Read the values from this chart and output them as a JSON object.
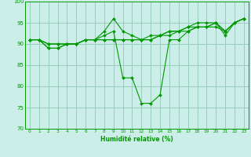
{
  "title": "",
  "xlabel": "Humidité relative (%)",
  "ylabel": "",
  "xlim": [
    -0.5,
    23.5
  ],
  "ylim": [
    70,
    100
  ],
  "yticks": [
    70,
    75,
    80,
    85,
    90,
    95,
    100
  ],
  "xticks": [
    0,
    1,
    2,
    3,
    4,
    5,
    6,
    7,
    8,
    9,
    10,
    11,
    12,
    13,
    14,
    15,
    16,
    17,
    18,
    19,
    20,
    21,
    22,
    23
  ],
  "bg_color": "#cceee8",
  "grid_color": "#99ccbb",
  "line_color": "#009900",
  "series": [
    [
      91,
      91,
      89,
      89,
      90,
      90,
      91,
      91,
      92,
      93,
      82,
      82,
      76,
      76,
      78,
      91,
      91,
      93,
      94,
      94,
      95,
      92,
      95,
      96
    ],
    [
      91,
      91,
      89,
      89,
      90,
      90,
      91,
      91,
      93,
      96,
      93,
      92,
      91,
      91,
      92,
      93,
      93,
      94,
      95,
      95,
      95,
      93,
      95,
      96
    ],
    [
      91,
      91,
      90,
      90,
      90,
      90,
      91,
      91,
      91,
      91,
      91,
      91,
      91,
      91,
      92,
      92,
      93,
      93,
      94,
      94,
      94,
      93,
      95,
      96
    ],
    [
      91,
      91,
      90,
      90,
      90,
      90,
      91,
      91,
      91,
      91,
      91,
      91,
      91,
      92,
      92,
      93,
      93,
      94,
      94,
      94,
      95,
      93,
      95,
      96
    ]
  ]
}
